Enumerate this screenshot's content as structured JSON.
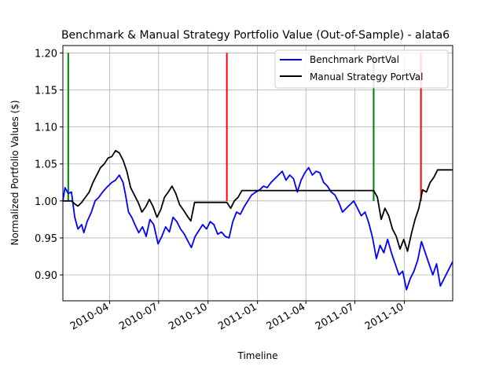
{
  "chart_data": {
    "type": "line",
    "title": "Benchmark & Manual Strategy Portfolio Value (Out-of-Sample) - alata6",
    "xlabel": "Timeline",
    "ylabel": "Normalized Portfolio Values ($)",
    "xlim": [
      "2010-01-04",
      "2011-12-30"
    ],
    "ylim": [
      0.865,
      1.21
    ],
    "grid": true,
    "legend_position": "top-right",
    "x_ticks": [
      {
        "date": "2010-04-01",
        "label": "2010-04"
      },
      {
        "date": "2010-07-01",
        "label": "2010-07"
      },
      {
        "date": "2010-10-01",
        "label": "2010-10"
      },
      {
        "date": "2011-01-01",
        "label": "2011-01"
      },
      {
        "date": "2011-04-01",
        "label": "2011-04"
      },
      {
        "date": "2011-07-01",
        "label": "2011-07"
      },
      {
        "date": "2011-10-01",
        "label": "2011-10"
      }
    ],
    "y_ticks": [
      0.9,
      0.95,
      1.0,
      1.05,
      1.1,
      1.15,
      1.2
    ],
    "y_tick_labels": [
      "0.90",
      "0.95",
      "1.00",
      "1.05",
      "1.10",
      "1.15",
      "1.20"
    ],
    "series": [
      {
        "name": "Benchmark PortVal",
        "color": "#0000ff",
        "points": [
          [
            "2010-01-04",
            1.0
          ],
          [
            "2010-01-08",
            1.018
          ],
          [
            "2010-01-14",
            1.01
          ],
          [
            "2010-01-20",
            1.012
          ],
          [
            "2010-01-26",
            0.978
          ],
          [
            "2010-02-01",
            0.962
          ],
          [
            "2010-02-08",
            0.968
          ],
          [
            "2010-02-12",
            0.957
          ],
          [
            "2010-02-18",
            0.972
          ],
          [
            "2010-02-26",
            0.985
          ],
          [
            "2010-03-05",
            1.0
          ],
          [
            "2010-03-12",
            1.005
          ],
          [
            "2010-03-19",
            1.012
          ],
          [
            "2010-03-26",
            1.018
          ],
          [
            "2010-04-05",
            1.025
          ],
          [
            "2010-04-12",
            1.028
          ],
          [
            "2010-04-19",
            1.035
          ],
          [
            "2010-04-26",
            1.025
          ],
          [
            "2010-04-30",
            1.01
          ],
          [
            "2010-05-06",
            0.985
          ],
          [
            "2010-05-12",
            0.978
          ],
          [
            "2010-05-18",
            0.968
          ],
          [
            "2010-05-25",
            0.957
          ],
          [
            "2010-06-01",
            0.965
          ],
          [
            "2010-06-08",
            0.952
          ],
          [
            "2010-06-15",
            0.975
          ],
          [
            "2010-06-22",
            0.968
          ],
          [
            "2010-06-30",
            0.942
          ],
          [
            "2010-07-07",
            0.952
          ],
          [
            "2010-07-14",
            0.965
          ],
          [
            "2010-07-21",
            0.958
          ],
          [
            "2010-07-28",
            0.978
          ],
          [
            "2010-08-04",
            0.972
          ],
          [
            "2010-08-11",
            0.962
          ],
          [
            "2010-08-18",
            0.955
          ],
          [
            "2010-08-25",
            0.945
          ],
          [
            "2010-08-31",
            0.937
          ],
          [
            "2010-09-07",
            0.952
          ],
          [
            "2010-09-14",
            0.96
          ],
          [
            "2010-09-21",
            0.968
          ],
          [
            "2010-09-28",
            0.962
          ],
          [
            "2010-10-05",
            0.972
          ],
          [
            "2010-10-12",
            0.968
          ],
          [
            "2010-10-19",
            0.955
          ],
          [
            "2010-10-26",
            0.958
          ],
          [
            "2010-11-02",
            0.952
          ],
          [
            "2010-11-09",
            0.95
          ],
          [
            "2010-11-16",
            0.972
          ],
          [
            "2010-11-23",
            0.985
          ],
          [
            "2010-11-30",
            0.982
          ],
          [
            "2010-12-07",
            0.992
          ],
          [
            "2010-12-14",
            1.0
          ],
          [
            "2010-12-21",
            1.008
          ],
          [
            "2010-12-29",
            1.012
          ],
          [
            "2011-01-05",
            1.015
          ],
          [
            "2011-01-12",
            1.02
          ],
          [
            "2011-01-19",
            1.018
          ],
          [
            "2011-01-26",
            1.025
          ],
          [
            "2011-02-02",
            1.03
          ],
          [
            "2011-02-09",
            1.035
          ],
          [
            "2011-02-16",
            1.04
          ],
          [
            "2011-02-23",
            1.028
          ],
          [
            "2011-03-02",
            1.035
          ],
          [
            "2011-03-09",
            1.03
          ],
          [
            "2011-03-16",
            1.012
          ],
          [
            "2011-03-23",
            1.028
          ],
          [
            "2011-03-30",
            1.038
          ],
          [
            "2011-04-06",
            1.045
          ],
          [
            "2011-04-13",
            1.035
          ],
          [
            "2011-04-20",
            1.04
          ],
          [
            "2011-04-27",
            1.038
          ],
          [
            "2011-05-04",
            1.025
          ],
          [
            "2011-05-11",
            1.02
          ],
          [
            "2011-05-18",
            1.012
          ],
          [
            "2011-05-25",
            1.008
          ],
          [
            "2011-06-01",
            0.998
          ],
          [
            "2011-06-08",
            0.985
          ],
          [
            "2011-06-15",
            0.99
          ],
          [
            "2011-06-22",
            0.995
          ],
          [
            "2011-06-29",
            1.0
          ],
          [
            "2011-07-06",
            0.99
          ],
          [
            "2011-07-13",
            0.98
          ],
          [
            "2011-07-20",
            0.985
          ],
          [
            "2011-07-27",
            0.97
          ],
          [
            "2011-08-03",
            0.95
          ],
          [
            "2011-08-10",
            0.922
          ],
          [
            "2011-08-17",
            0.94
          ],
          [
            "2011-08-24",
            0.93
          ],
          [
            "2011-08-31",
            0.948
          ],
          [
            "2011-09-07",
            0.93
          ],
          [
            "2011-09-14",
            0.915
          ],
          [
            "2011-09-21",
            0.9
          ],
          [
            "2011-09-28",
            0.905
          ],
          [
            "2011-10-05",
            0.88
          ],
          [
            "2011-10-12",
            0.895
          ],
          [
            "2011-10-19",
            0.905
          ],
          [
            "2011-10-26",
            0.92
          ],
          [
            "2011-11-02",
            0.945
          ],
          [
            "2011-11-09",
            0.93
          ],
          [
            "2011-11-16",
            0.915
          ],
          [
            "2011-11-23",
            0.9
          ],
          [
            "2011-11-30",
            0.915
          ],
          [
            "2011-12-07",
            0.885
          ],
          [
            "2011-12-14",
            0.895
          ],
          [
            "2011-12-21",
            0.905
          ],
          [
            "2011-12-30",
            0.918
          ]
        ]
      },
      {
        "name": "Manual Strategy PortVal",
        "color": "#000000",
        "points": [
          [
            "2010-01-04",
            1.0
          ],
          [
            "2010-01-20",
            1.0
          ],
          [
            "2010-01-26",
            0.996
          ],
          [
            "2010-02-01",
            0.993
          ],
          [
            "2010-02-08",
            0.998
          ],
          [
            "2010-02-15",
            1.005
          ],
          [
            "2010-02-22",
            1.012
          ],
          [
            "2010-03-01",
            1.025
          ],
          [
            "2010-03-08",
            1.035
          ],
          [
            "2010-03-15",
            1.045
          ],
          [
            "2010-03-22",
            1.05
          ],
          [
            "2010-03-29",
            1.058
          ],
          [
            "2010-04-05",
            1.06
          ],
          [
            "2010-04-12",
            1.068
          ],
          [
            "2010-04-19",
            1.065
          ],
          [
            "2010-04-26",
            1.055
          ],
          [
            "2010-05-03",
            1.04
          ],
          [
            "2010-05-10",
            1.018
          ],
          [
            "2010-05-17",
            1.008
          ],
          [
            "2010-05-24",
            0.998
          ],
          [
            "2010-05-31",
            0.985
          ],
          [
            "2010-06-07",
            0.992
          ],
          [
            "2010-06-14",
            1.002
          ],
          [
            "2010-06-21",
            0.992
          ],
          [
            "2010-06-28",
            0.978
          ],
          [
            "2010-07-05",
            0.988
          ],
          [
            "2010-07-12",
            1.005
          ],
          [
            "2010-07-19",
            1.012
          ],
          [
            "2010-07-26",
            1.02
          ],
          [
            "2010-08-02",
            1.01
          ],
          [
            "2010-08-09",
            0.995
          ],
          [
            "2010-08-16",
            0.988
          ],
          [
            "2010-08-23",
            0.98
          ],
          [
            "2010-08-30",
            0.973
          ],
          [
            "2010-09-06",
            0.998
          ],
          [
            "2010-11-05",
            0.998
          ],
          [
            "2010-11-12",
            0.99
          ],
          [
            "2010-11-19",
            1.0
          ],
          [
            "2010-11-26",
            1.005
          ],
          [
            "2010-12-03",
            1.014
          ],
          [
            "2011-08-05",
            1.014
          ],
          [
            "2011-08-12",
            1.005
          ],
          [
            "2011-08-19",
            0.975
          ],
          [
            "2011-08-26",
            0.99
          ],
          [
            "2011-09-02",
            0.98
          ],
          [
            "2011-09-09",
            0.962
          ],
          [
            "2011-09-16",
            0.952
          ],
          [
            "2011-09-23",
            0.935
          ],
          [
            "2011-09-30",
            0.948
          ],
          [
            "2011-10-07",
            0.932
          ],
          [
            "2011-10-14",
            0.955
          ],
          [
            "2011-10-21",
            0.975
          ],
          [
            "2011-10-28",
            0.99
          ],
          [
            "2011-11-04",
            1.015
          ],
          [
            "2011-11-11",
            1.012
          ],
          [
            "2011-11-18",
            1.025
          ],
          [
            "2011-11-25",
            1.032
          ],
          [
            "2011-12-02",
            1.042
          ],
          [
            "2011-12-30",
            1.042
          ]
        ]
      }
    ],
    "vertical_markers": [
      {
        "date": "2010-01-14",
        "color": "#008000",
        "from": 1.0,
        "to": 1.2
      },
      {
        "date": "2010-11-05",
        "color": "#ff0000",
        "from": 1.0,
        "to": 1.2
      },
      {
        "date": "2011-08-05",
        "color": "#008000",
        "from": 1.0,
        "to": 1.2
      },
      {
        "date": "2011-11-01",
        "color": "#ff0000",
        "from": 1.0,
        "to": 1.2
      }
    ]
  }
}
